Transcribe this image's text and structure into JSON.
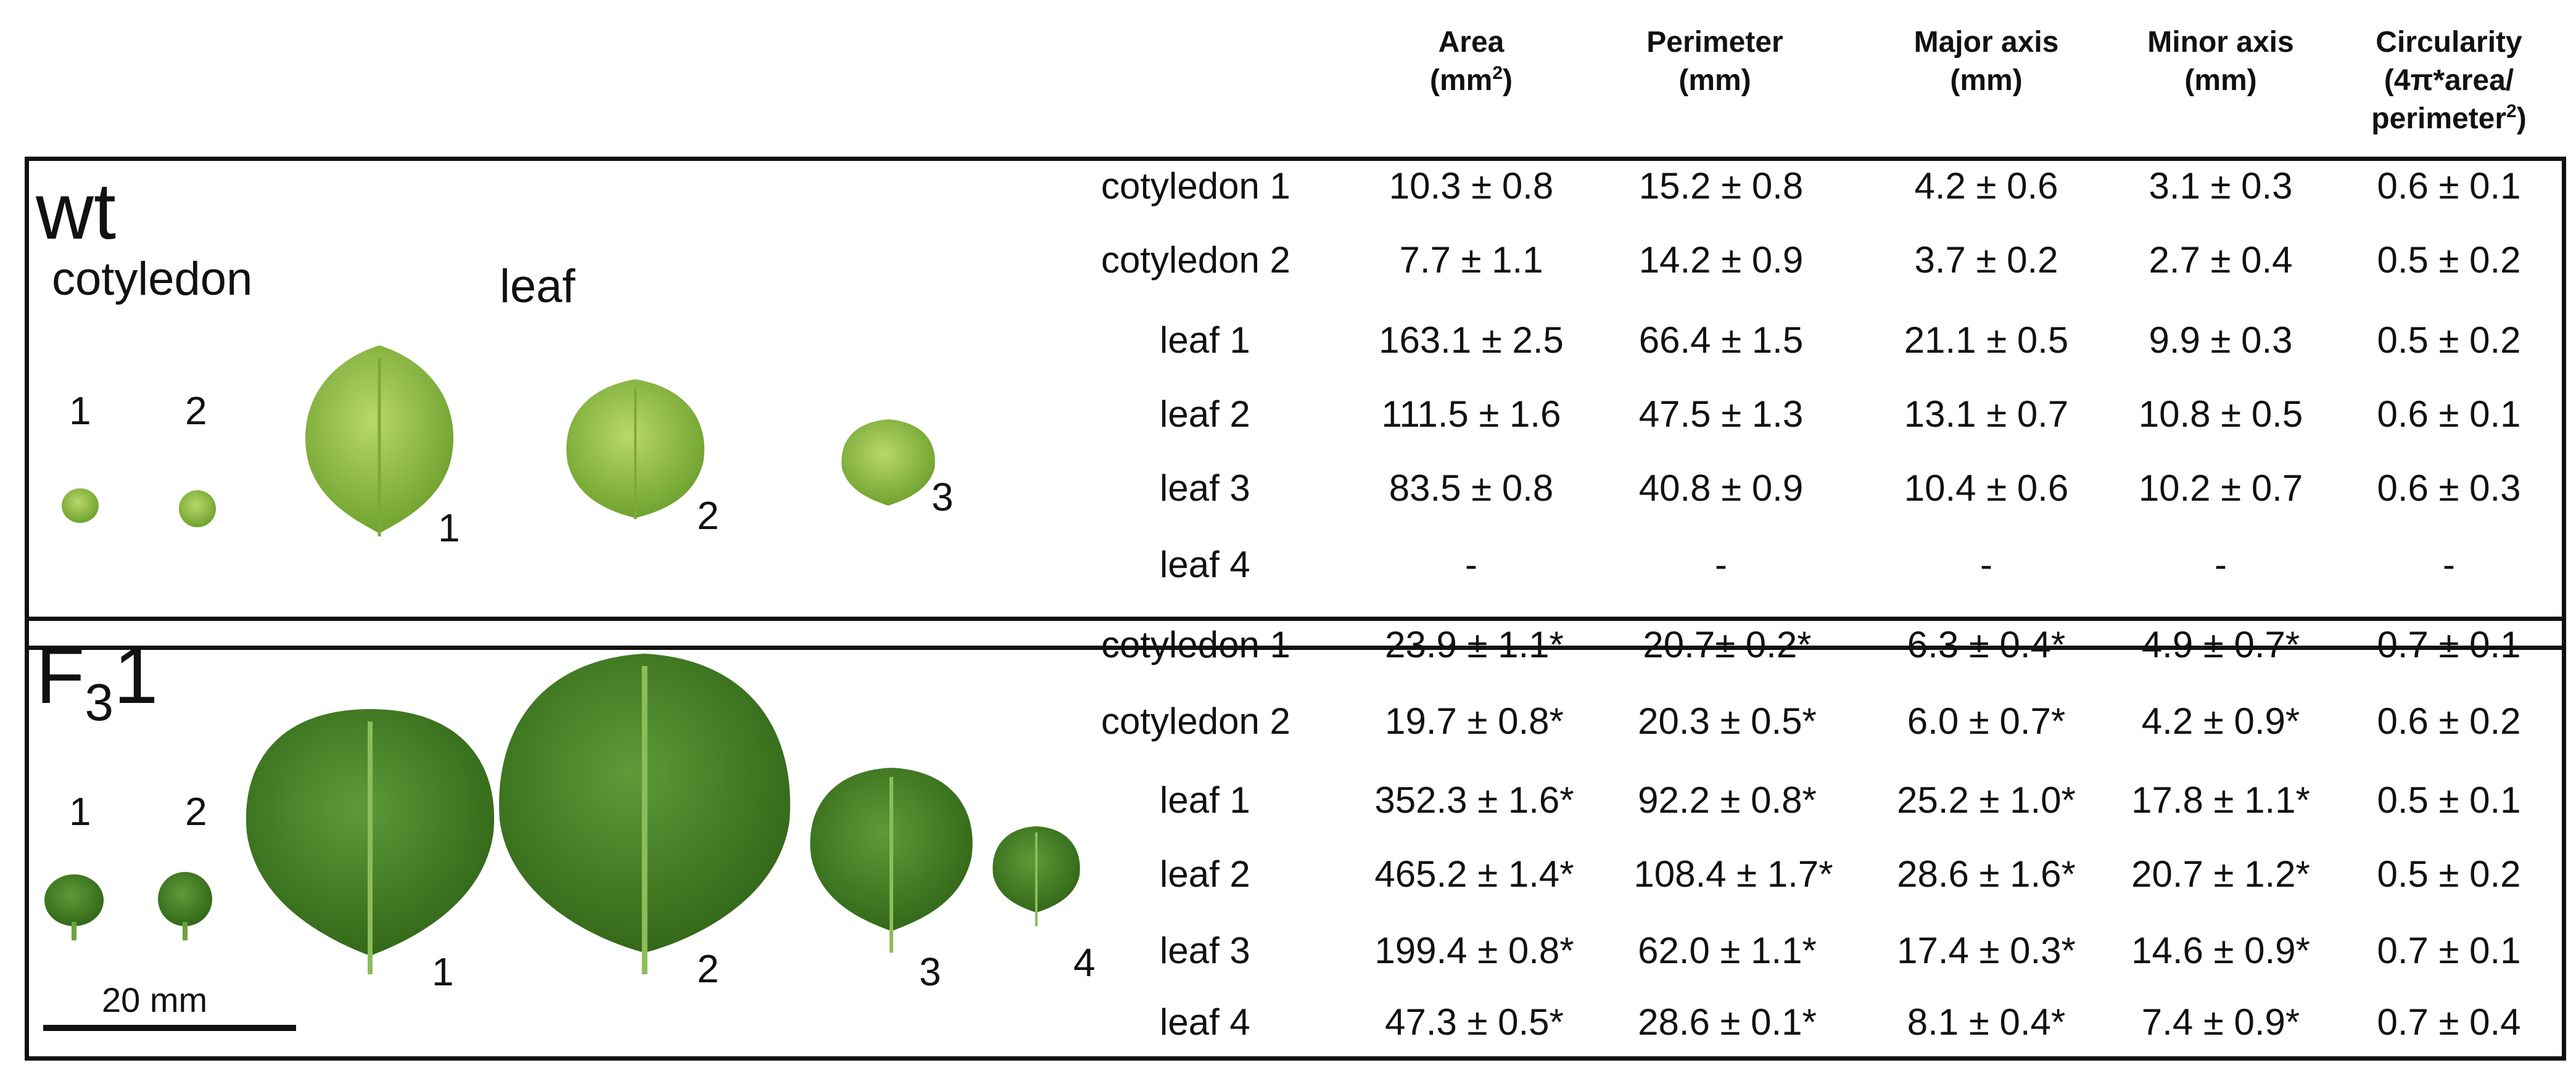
{
  "headers": [
    {
      "main": "Area",
      "line2": "(mm",
      "sup": "2",
      "line2_end": ")",
      "line3": "",
      "line4": ""
    },
    {
      "main": "Perimeter",
      "line2": "(mm)",
      "sup": "",
      "line2_end": "",
      "line3": "",
      "line4": ""
    },
    {
      "main": "Major axis",
      "line2": "(mm)",
      "sup": "",
      "line2_end": "",
      "line3": "",
      "line4": ""
    },
    {
      "main": "Minor axis",
      "line2": "(mm)",
      "sup": "",
      "line2_end": "",
      "line3": "",
      "line4": ""
    },
    {
      "main": "Circularity",
      "line2": "(4π*area/",
      "sup": "",
      "line2_end": "",
      "line3": "perimeter",
      "line3_sup": "2",
      "line3_end": ")"
    }
  ],
  "wt": {
    "label": "wt",
    "cotyledon_label": "cotyledon",
    "leaf_label": "leaf",
    "cot_numbers": [
      "1",
      "2"
    ],
    "leaf_numbers": [
      "1",
      "2",
      "3"
    ],
    "rows": [
      {
        "name": "cotyledon 1",
        "values": [
          "10.3 ± 0.8",
          "15.2 ± 0.8",
          "4.2 ± 0.6",
          "3.1 ± 0.3",
          "0.6 ± 0.1"
        ]
      },
      {
        "name": "cotyledon 2",
        "values": [
          "7.7 ± 1.1",
          "14.2 ± 0.9",
          "3.7 ± 0.2",
          "2.7 ± 0.4",
          "0.5 ± 0.2"
        ]
      },
      {
        "name": "leaf 1",
        "values": [
          "163.1 ± 2.5",
          "66.4 ± 1.5",
          "21.1 ± 0.5",
          "9.9 ± 0.3",
          "0.5 ± 0.2"
        ]
      },
      {
        "name": "leaf 2",
        "values": [
          "111.5 ± 1.6",
          "47.5 ± 1.3",
          "13.1 ± 0.7",
          "10.8 ± 0.5",
          "0.6 ± 0.1"
        ]
      },
      {
        "name": "leaf 3",
        "values": [
          "83.5 ± 0.8",
          "40.8 ± 0.9",
          "10.4 ± 0.6",
          "10.2 ± 0.7",
          "0.6 ± 0.3"
        ]
      },
      {
        "name": "leaf 4",
        "values": [
          "-",
          "-",
          "-",
          "-",
          "-"
        ]
      }
    ]
  },
  "f3": {
    "label_main": "F",
    "label_sub": "3",
    "label_end": "1",
    "cot_numbers": [
      "1",
      "2"
    ],
    "leaf_numbers": [
      "1",
      "2",
      "3",
      "4"
    ],
    "scale_label": "20 mm",
    "rows": [
      {
        "name": "cotyledon 1",
        "values": [
          "23.9 ± 1.1*",
          "20.7± 0.2*",
          "6.3 ± 0.4*",
          "4.9 ± 0.7*",
          "0.7 ± 0.1"
        ]
      },
      {
        "name": "cotyledon 2",
        "values": [
          "19.7 ± 0.8*",
          "20.3 ± 0.5*",
          "6.0 ± 0.7*",
          "4.2 ± 0.9*",
          "0.6 ± 0.2"
        ]
      },
      {
        "name": "leaf 1",
        "values": [
          "352.3 ± 1.6*",
          "92.2 ± 0.8*",
          "25.2 ± 1.0*",
          "17.8 ± 1.1*",
          "0.5 ± 0.1"
        ]
      },
      {
        "name": "leaf 2",
        "values": [
          "465.2 ± 1.4*",
          "108.4 ± 1.7*",
          "28.6 ± 1.6*",
          "20.7 ± 1.2*",
          "0.5 ± 0.2"
        ]
      },
      {
        "name": "leaf 3",
        "values": [
          "199.4 ± 0.8*",
          "62.0 ± 1.1*",
          "17.4 ± 0.3*",
          "14.6 ± 0.9*",
          "0.7 ± 0.1"
        ]
      },
      {
        "name": "leaf 4",
        "values": [
          "47.3 ± 0.5*",
          "28.6 ± 0.1*",
          "8.1 ± 0.4*",
          "7.4 ± 0.9*",
          "0.7 ± 0.4"
        ]
      }
    ]
  },
  "colors": {
    "wt_leaf_light": "#b8d86a",
    "wt_leaf_dark": "#6a9e2a",
    "f3_leaf_light": "#5e9a38",
    "f3_leaf_dark": "#2f6416",
    "border": "#111111"
  }
}
